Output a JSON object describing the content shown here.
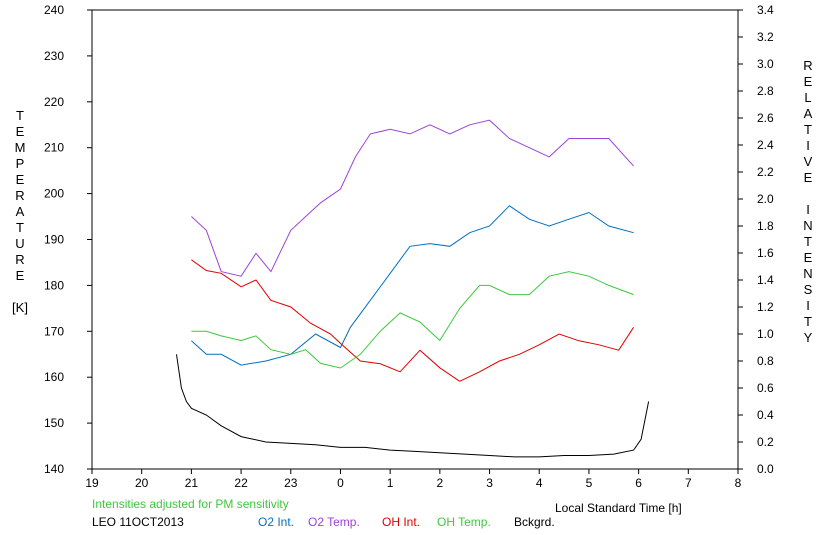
{
  "chart_data": {
    "type": "line",
    "title": "",
    "xlabel": "Local Standard Time [h]",
    "ylabel_left": "TEMPERATURE [K]",
    "ylabel_left_letters": [
      "T",
      "E",
      "M",
      "P",
      "E",
      "R",
      "A",
      "T",
      "U",
      "R",
      "E"
    ],
    "ylabel_left_unit": "[K]",
    "ylabel_right": "RELATIVE INTENSITY",
    "ylabel_right_letters_1": [
      "R",
      "E",
      "L",
      "A",
      "T",
      "I",
      "V",
      "E"
    ],
    "ylabel_right_letters_2": [
      "I",
      "N",
      "T",
      "E",
      "N",
      "S",
      "I",
      "T",
      "Y"
    ],
    "x_ticks": [
      "19",
      "20",
      "21",
      "22",
      "23",
      "0",
      "1",
      "2",
      "3",
      "4",
      "5",
      "6",
      "7",
      "8"
    ],
    "xlim": [
      19,
      32
    ],
    "ylim_left": [
      140,
      240
    ],
    "ylim_right": [
      0.0,
      3.4
    ],
    "y_left_ticks": [
      "140",
      "150",
      "160",
      "170",
      "180",
      "190",
      "200",
      "210",
      "220",
      "230",
      "240"
    ],
    "y_right_ticks": [
      "0.0",
      "0.2",
      "0.4",
      "0.6",
      "0.8",
      "1.0",
      "1.2",
      "1.4",
      "1.6",
      "1.8",
      "2.0",
      "2.2",
      "2.4",
      "2.6",
      "2.8",
      "3.0",
      "3.2",
      "3.4"
    ],
    "grid": false,
    "note": "Intensities adjusted for PM sensitivity",
    "station": "LEO 11OCT2013",
    "series": [
      {
        "name": "O2 Int.",
        "color": "#0070c0",
        "axis": "right",
        "x": [
          21.0,
          21.3,
          21.6,
          22.0,
          22.5,
          23.0,
          23.5,
          24.0,
          24.2,
          24.6,
          25.0,
          25.4,
          25.8,
          26.2,
          26.6,
          27.0,
          27.4,
          27.8,
          28.2,
          28.6,
          29.0,
          29.4,
          29.9
        ],
        "y": [
          0.95,
          0.85,
          0.85,
          0.77,
          0.8,
          0.85,
          1.0,
          0.9,
          1.05,
          1.25,
          1.45,
          1.65,
          1.67,
          1.65,
          1.75,
          1.8,
          1.95,
          1.85,
          1.8,
          1.85,
          1.9,
          1.8,
          1.75
        ]
      },
      {
        "name": "O2 Temp.",
        "color": "#9c44d8",
        "axis": "left",
        "x": [
          21.0,
          21.3,
          21.6,
          22.0,
          22.3,
          22.6,
          23.0,
          23.3,
          23.6,
          24.0,
          24.3,
          24.6,
          25.0,
          25.4,
          25.8,
          26.2,
          26.6,
          27.0,
          27.4,
          27.8,
          28.2,
          28.6,
          29.0,
          29.4,
          29.9
        ],
        "y": [
          195,
          192,
          183,
          182,
          187,
          183,
          192,
          195,
          198,
          201,
          208,
          213,
          214,
          213,
          215,
          213,
          215,
          216,
          212,
          210,
          208,
          212,
          212,
          212,
          206
        ]
      },
      {
        "name": "OH Int.",
        "color": "#e00000",
        "axis": "right",
        "x": [
          21.0,
          21.3,
          21.6,
          22.0,
          22.3,
          22.6,
          23.0,
          23.4,
          23.8,
          24.0,
          24.4,
          24.8,
          25.2,
          25.6,
          26.0,
          26.4,
          26.8,
          27.2,
          27.6,
          28.0,
          28.4,
          28.8,
          29.2,
          29.6,
          29.9
        ],
        "y": [
          1.55,
          1.47,
          1.45,
          1.35,
          1.4,
          1.25,
          1.2,
          1.08,
          1.0,
          0.93,
          0.8,
          0.78,
          0.72,
          0.88,
          0.75,
          0.65,
          0.72,
          0.8,
          0.85,
          0.92,
          1.0,
          0.95,
          0.92,
          0.88,
          1.05
        ]
      },
      {
        "name": "OH Temp.",
        "color": "#3cc93c",
        "axis": "left",
        "x": [
          21.0,
          21.3,
          21.6,
          22.0,
          22.3,
          22.6,
          23.0,
          23.3,
          23.6,
          24.0,
          24.4,
          24.8,
          25.2,
          25.6,
          26.0,
          26.4,
          26.8,
          27.0,
          27.4,
          27.8,
          28.2,
          28.6,
          29.0,
          29.4,
          29.9
        ],
        "y": [
          170,
          170,
          169,
          168,
          169,
          166,
          165,
          166,
          163,
          162,
          165,
          170,
          174,
          172,
          168,
          175,
          180,
          180,
          178,
          178,
          182,
          183,
          182,
          180,
          178
        ]
      },
      {
        "name": "Bckgrd.",
        "color": "#000000",
        "axis": "right",
        "x": [
          20.7,
          20.8,
          20.9,
          21.0,
          21.3,
          21.6,
          22.0,
          22.5,
          23.0,
          23.5,
          24.0,
          24.5,
          25.0,
          25.5,
          26.0,
          26.5,
          27.0,
          27.5,
          28.0,
          28.5,
          29.0,
          29.5,
          29.9,
          30.05,
          30.2
        ],
        "y": [
          0.85,
          0.6,
          0.5,
          0.45,
          0.4,
          0.32,
          0.24,
          0.2,
          0.19,
          0.18,
          0.16,
          0.16,
          0.14,
          0.13,
          0.12,
          0.11,
          0.1,
          0.09,
          0.09,
          0.1,
          0.1,
          0.11,
          0.14,
          0.22,
          0.5
        ]
      }
    ]
  }
}
